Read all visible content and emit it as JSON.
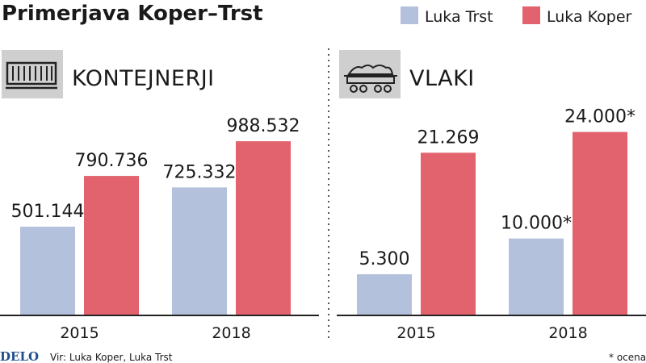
{
  "title": "Primerjava Koper–Trst",
  "legend": [
    {
      "label": "Luka Trst",
      "color": "#b4c1dc"
    },
    {
      "label": "Luka Koper",
      "color": "#e2636d"
    }
  ],
  "chart_data": [
    {
      "type": "bar",
      "title": "KONTEJNERJI",
      "icon": "container-icon",
      "categories": [
        "2015",
        "2018"
      ],
      "series": [
        {
          "name": "Luka Trst",
          "values": [
            501144,
            725332
          ],
          "labels": [
            "501.144",
            "725.332"
          ]
        },
        {
          "name": "Luka Koper",
          "values": [
            790736,
            988532
          ],
          "labels": [
            "790.736",
            "988.532"
          ]
        }
      ],
      "ylim": [
        0,
        1150000
      ]
    },
    {
      "type": "bar",
      "title": "VLAKI",
      "icon": "train-wagon-icon",
      "categories": [
        "2015",
        "2018"
      ],
      "series": [
        {
          "name": "Luka Trst",
          "values": [
            5300,
            10000
          ],
          "labels": [
            "5.300",
            "10.000*"
          ]
        },
        {
          "name": "Luka Koper",
          "values": [
            21269,
            24000
          ],
          "labels": [
            "21.269",
            "24.000*"
          ]
        }
      ],
      "ylim": [
        0,
        26500
      ]
    }
  ],
  "footer": {
    "logo": "DELO",
    "source": "Vir: Luka Koper, Luka Trst",
    "note": "* ocena"
  }
}
